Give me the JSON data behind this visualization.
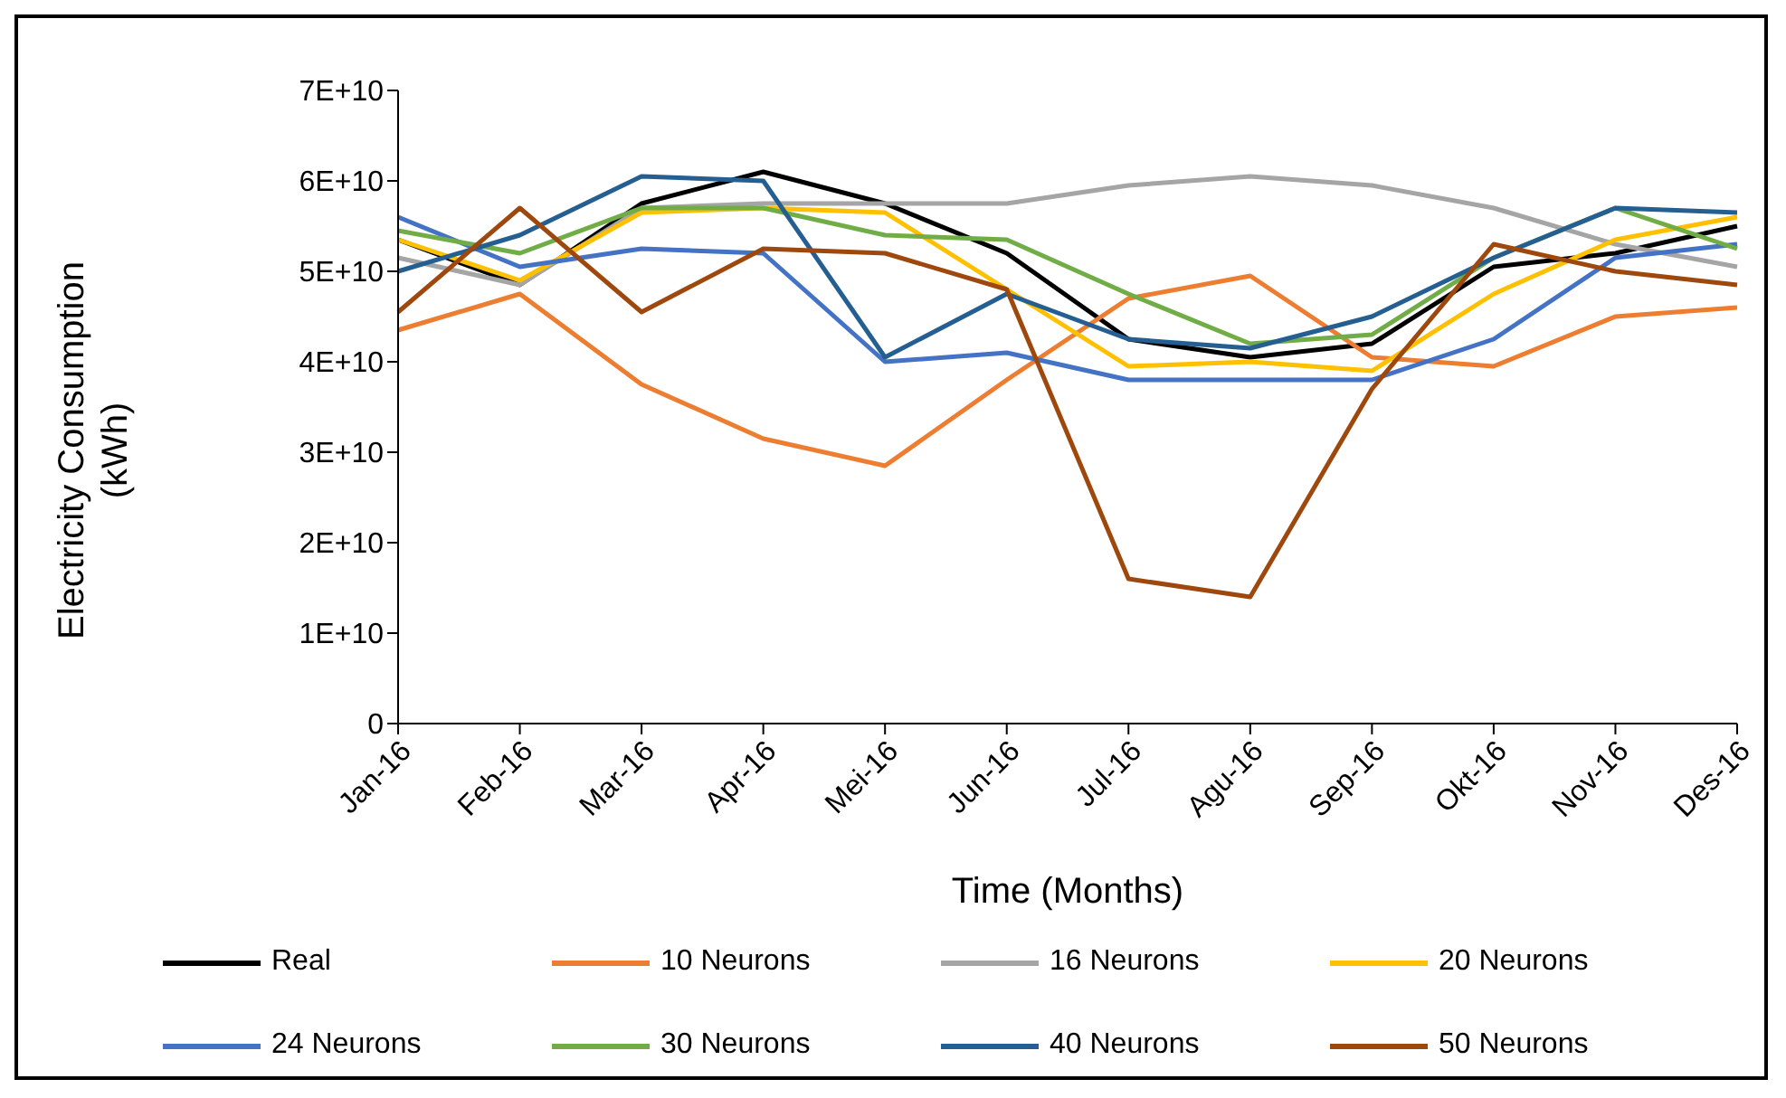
{
  "chart_data": {
    "type": "line",
    "xlabel": "Time (Months)",
    "ylabel": "Electricity Consumption (kWh)",
    "categories": [
      "Jan-16",
      "Feb-16",
      "Mar-16",
      "Apr-16",
      "Mei-16",
      "Jun-16",
      "Jul-16",
      "Agu-16",
      "Sep-16",
      "Okt-16",
      "Nov-16",
      "Des-16"
    ],
    "ylim": [
      0,
      70000000000
    ],
    "yticks": [
      0,
      {
        "value": 10000000000,
        "label": "1E+10"
      },
      {
        "value": 20000000000,
        "label": "2E+10"
      },
      {
        "value": 30000000000,
        "label": "3E+10"
      },
      {
        "value": 40000000000,
        "label": "4E+10"
      },
      {
        "value": 50000000000,
        "label": "5E+10"
      },
      {
        "value": 60000000000,
        "label": "6E+10"
      },
      {
        "value": 70000000000,
        "label": "7E+10"
      }
    ],
    "grid": false,
    "legend": "bottom",
    "marker": "none",
    "line_style": "solid",
    "series": [
      {
        "name": "Real",
        "color": "#000000",
        "values": [
          53500000000,
          48500000000,
          57500000000,
          61000000000,
          57500000000,
          52000000000,
          42500000000,
          40500000000,
          42000000000,
          50500000000,
          52000000000,
          55000000000
        ]
      },
      {
        "name": "10 Neurons",
        "color": "#ed7d31",
        "values": [
          43500000000,
          47500000000,
          37500000000,
          31500000000,
          28500000000,
          38000000000,
          47000000000,
          49500000000,
          40500000000,
          39500000000,
          45000000000,
          46000000000
        ]
      },
      {
        "name": "16 Neurons",
        "color": "#a5a5a5",
        "values": [
          51500000000,
          48500000000,
          57000000000,
          57500000000,
          57500000000,
          57500000000,
          59500000000,
          60500000000,
          59500000000,
          57000000000,
          53000000000,
          50500000000
        ]
      },
      {
        "name": "20 Neurons",
        "color": "#ffc000",
        "values": [
          53500000000,
          49000000000,
          56500000000,
          57000000000,
          56500000000,
          48000000000,
          39500000000,
          40000000000,
          39000000000,
          47500000000,
          53500000000,
          56000000000
        ]
      },
      {
        "name": "24 Neurons",
        "color": "#4472c4",
        "values": [
          56000000000,
          50500000000,
          52500000000,
          52000000000,
          40000000000,
          41000000000,
          38000000000,
          38000000000,
          38000000000,
          42500000000,
          51500000000,
          53000000000
        ]
      },
      {
        "name": "30 Neurons",
        "color": "#70ad47",
        "values": [
          54500000000,
          52000000000,
          57000000000,
          57000000000,
          54000000000,
          53500000000,
          47500000000,
          42000000000,
          43000000000,
          51500000000,
          57000000000,
          52500000000
        ]
      },
      {
        "name": "40 Neurons",
        "color": "#255e91",
        "values": [
          50000000000,
          54000000000,
          60500000000,
          60000000000,
          40500000000,
          47500000000,
          42500000000,
          41500000000,
          45000000000,
          51500000000,
          57000000000,
          56500000000
        ]
      },
      {
        "name": "50 Neurons",
        "color": "#9e480e",
        "values": [
          45500000000,
          57000000000,
          45500000000,
          52500000000,
          52000000000,
          48000000000,
          16000000000,
          14000000000,
          37000000000,
          53000000000,
          50000000000,
          48500000000
        ]
      }
    ]
  }
}
